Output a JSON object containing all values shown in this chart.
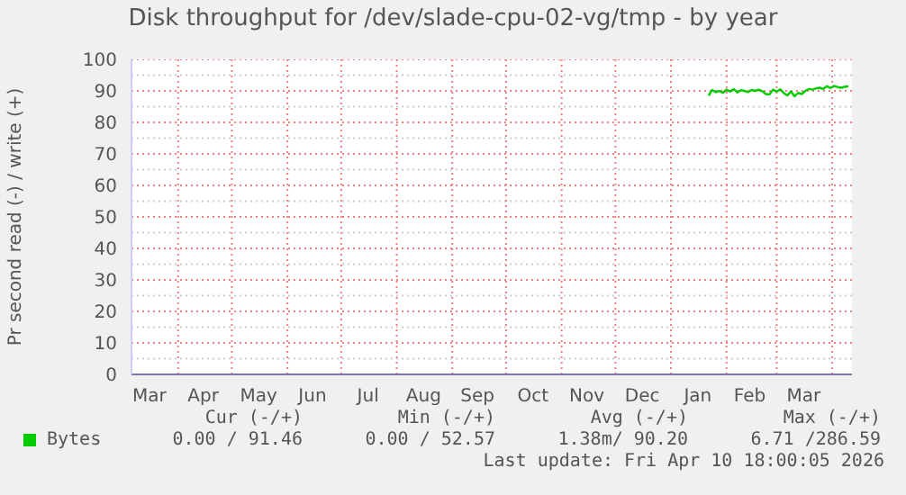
{
  "chart_data": {
    "type": "line",
    "title": "Disk throughput for /dev/slade-cpu-02-vg/tmp - by year",
    "ylabel": "Pr second read (-) / write (+)",
    "x": [
      "2026-01-22",
      "2026-01-24",
      "2026-01-26",
      "2026-01-28",
      "2026-01-30",
      "2026-02-01",
      "2026-02-03",
      "2026-02-05",
      "2026-02-07",
      "2026-02-09",
      "2026-02-11",
      "2026-02-13",
      "2026-02-15",
      "2026-02-17",
      "2026-02-19",
      "2026-02-21",
      "2026-02-23",
      "2026-02-25",
      "2026-02-27",
      "2026-03-01",
      "2026-03-03",
      "2026-03-05",
      "2026-03-07",
      "2026-03-09",
      "2026-03-11",
      "2026-03-13",
      "2026-03-15",
      "2026-03-17",
      "2026-03-19",
      "2026-03-21",
      "2026-03-23",
      "2026-03-25",
      "2026-03-27",
      "2026-03-29",
      "2026-03-31",
      "2026-04-02",
      "2026-04-04",
      "2026-04-06",
      "2026-04-08",
      "2026-04-10"
    ],
    "series": [
      {
        "name": "Bytes",
        "color": "#00cc00",
        "values": [
          88.5,
          90.3,
          89.6,
          90.0,
          89.4,
          90.4,
          89.8,
          90.6,
          89.5,
          90.2,
          90.0,
          89.6,
          90.3,
          90.0,
          90.4,
          89.9,
          89.0,
          88.9,
          90.4,
          89.8,
          90.5,
          89.3,
          88.6,
          89.8,
          88.3,
          89.4,
          89.0,
          90.0,
          90.6,
          90.4,
          90.8,
          91.0,
          90.6,
          91.5,
          90.9,
          91.6,
          91.2,
          91.0,
          91.3,
          91.5
        ]
      }
    ],
    "xlim": [
      "2025-03-06",
      "2026-04-12"
    ],
    "xticks": [
      {
        "value": "2025-03-16",
        "label": "Mar"
      },
      {
        "value": "2025-04-15",
        "label": "Apr"
      },
      {
        "value": "2025-05-16",
        "label": "May"
      },
      {
        "value": "2025-06-15",
        "label": "Jun"
      },
      {
        "value": "2025-07-16",
        "label": "Jul"
      },
      {
        "value": "2025-08-16",
        "label": "Aug"
      },
      {
        "value": "2025-09-15",
        "label": "Sep"
      },
      {
        "value": "2025-10-16",
        "label": "Oct"
      },
      {
        "value": "2025-11-15",
        "label": "Nov"
      },
      {
        "value": "2025-12-16",
        "label": "Dec"
      },
      {
        "value": "2026-01-16",
        "label": "Jan"
      },
      {
        "value": "2026-02-14",
        "label": "Feb"
      },
      {
        "value": "2026-03-16",
        "label": "Mar"
      },
      {
        "value": "2025-04-01",
        "label": null
      },
      {
        "value": "2025-05-01",
        "label": null
      },
      {
        "value": "2025-06-01",
        "label": null
      },
      {
        "value": "2025-07-01",
        "label": null
      },
      {
        "value": "2025-08-01",
        "label": null
      },
      {
        "value": "2025-09-01",
        "label": null
      },
      {
        "value": "2025-10-01",
        "label": null
      },
      {
        "value": "2025-11-01",
        "label": null
      },
      {
        "value": "2025-12-01",
        "label": null
      },
      {
        "value": "2026-01-01",
        "label": null
      },
      {
        "value": "2026-02-01",
        "label": null
      },
      {
        "value": "2026-03-01",
        "label": null
      },
      {
        "value": "2026-04-01",
        "label": null
      }
    ],
    "ylim": [
      0,
      100
    ],
    "yticks": [
      0,
      10,
      20,
      30,
      40,
      50,
      60,
      70,
      80,
      90,
      100,
      {
        "value": 5,
        "label": null
      },
      {
        "value": 15,
        "label": null
      },
      {
        "value": 25,
        "label": null
      },
      {
        "value": 35,
        "label": null
      },
      {
        "value": 45,
        "label": null
      },
      {
        "value": 55,
        "label": null
      },
      {
        "value": 65,
        "label": null
      },
      {
        "value": 75,
        "label": null
      },
      {
        "value": 85,
        "label": null
      },
      {
        "value": 95,
        "label": null
      }
    ],
    "grid": true,
    "legend": "bottom left",
    "marker": "none",
    "annotations": [
      "Cur (-/+)",
      "0.00 / 91.46",
      "Min (-/+)",
      "0.00 / 52.57",
      "Avg (-/+)",
      "1.38m/ 90.20",
      "Max (-/+)",
      "6.71 /286.59",
      "Last update: Fri Apr 10 18:00:05 2026"
    ]
  }
}
